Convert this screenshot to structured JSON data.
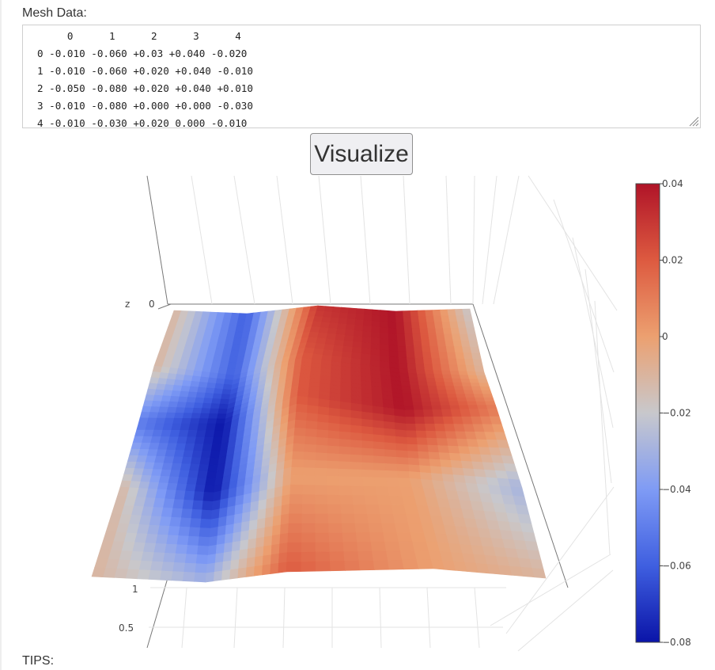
{
  "mesh": {
    "label": "Mesh Data:",
    "text": "     0      1      2      3      4\n0 -0.010 -0.060 +0.03 +0.040 -0.020\n1 -0.010 -0.060 +0.020 +0.040 -0.010\n2 -0.050 -0.080 +0.020 +0.040 +0.010\n3 -0.010 -0.080 +0.000 +0.000 -0.030\n4 -0.010 -0.030 +0.020 0.000 -0.010"
  },
  "button": {
    "label": "Visualize"
  },
  "tips": {
    "label": "TIPS:"
  },
  "chart_data": {
    "type": "surface",
    "rows": [
      "0",
      "1",
      "2",
      "3",
      "4"
    ],
    "columns": [
      "0",
      "1",
      "2",
      "3",
      "4"
    ],
    "z": [
      [
        -0.01,
        -0.06,
        0.03,
        0.04,
        -0.02
      ],
      [
        -0.01,
        -0.06,
        0.02,
        0.04,
        -0.01
      ],
      [
        -0.05,
        -0.08,
        0.02,
        0.04,
        0.01
      ],
      [
        -0.01,
        -0.08,
        0.0,
        0.0,
        -0.03
      ],
      [
        -0.01,
        -0.03,
        0.02,
        0.0,
        -0.01
      ]
    ],
    "colorscale": {
      "name": "coolwarm",
      "min": -0.08,
      "max": 0.04,
      "colors": [
        "#0a14a8",
        "#3f5fe0",
        "#7f9bf5",
        "#c8c8cc",
        "#eca070",
        "#dd5a40",
        "#b01428"
      ],
      "ticks": [
        "0.04",
        "0.02",
        "0",
        "−0.02",
        "−0.04",
        "−0.06",
        "−0.08"
      ]
    },
    "axis_labels": {
      "z_title": "z",
      "z_tick": "0",
      "y_ticks": [
        "1",
        "0.5"
      ]
    }
  }
}
